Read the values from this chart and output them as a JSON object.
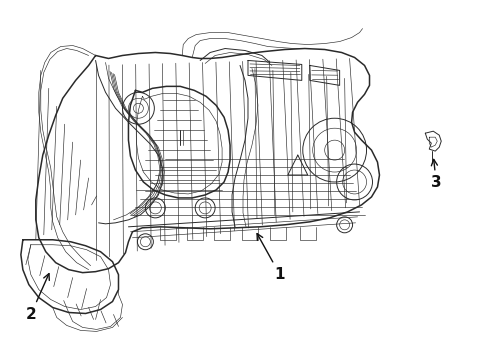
{
  "background_color": "#ffffff",
  "line_color": "#2a2a2a",
  "label_color": "#111111",
  "lw_main": 1.1,
  "lw_thin": 0.45,
  "lw_med": 0.7,
  "figsize": [
    4.9,
    3.6
  ],
  "dpi": 100
}
